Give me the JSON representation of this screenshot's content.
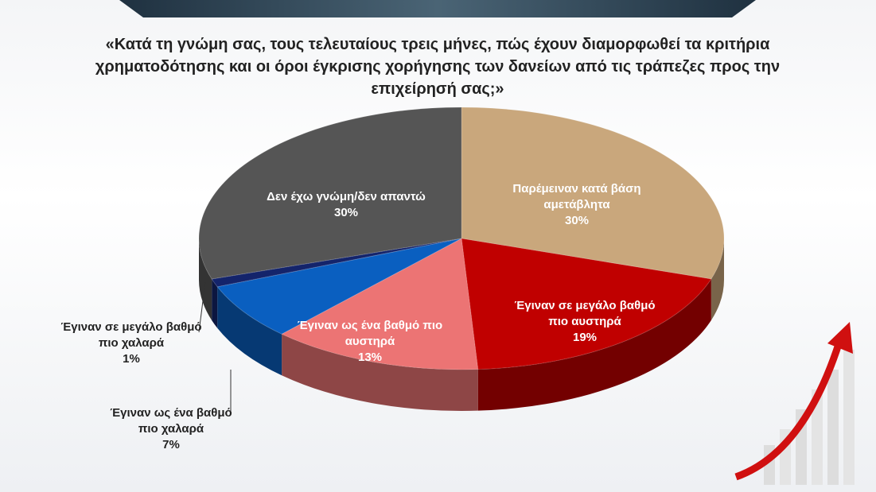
{
  "chart_data": {
    "type": "pie",
    "title": "«Κατά τη γνώμη σας, τους τελευταίους τρεις μήνες, πώς έχουν διαμορφωθεί τα κριτήρια χρηματοδότησης και οι όροι έγκρισης χορήγησης των δανείων από τις τράπεζες προς την επιχείρησή σας;»",
    "categories": [
      "Παρέμειναν κατά βάση αμετάβλητα",
      "Έγιναν σε μεγάλο βαθμό πιο αυστηρά",
      "Έγιναν ως ένα βαθμό πιο αυστηρά",
      "Έγιναν ως ένα βαθμό πιο χαλαρά",
      "Έγιναν σε μεγάλο βαθμό πιο χαλαρά",
      "Δεν έχω γνώμη/δεν απαντώ"
    ],
    "values": [
      30,
      19,
      13,
      7,
      1,
      30
    ],
    "value_labels": [
      "30%",
      "19%",
      "13%",
      "7%",
      "1%",
      "30%"
    ],
    "colors": [
      "#c9a77c",
      "#c00000",
      "#ec7474",
      "#0a5fc0",
      "#14246b",
      "#555555"
    ]
  }
}
